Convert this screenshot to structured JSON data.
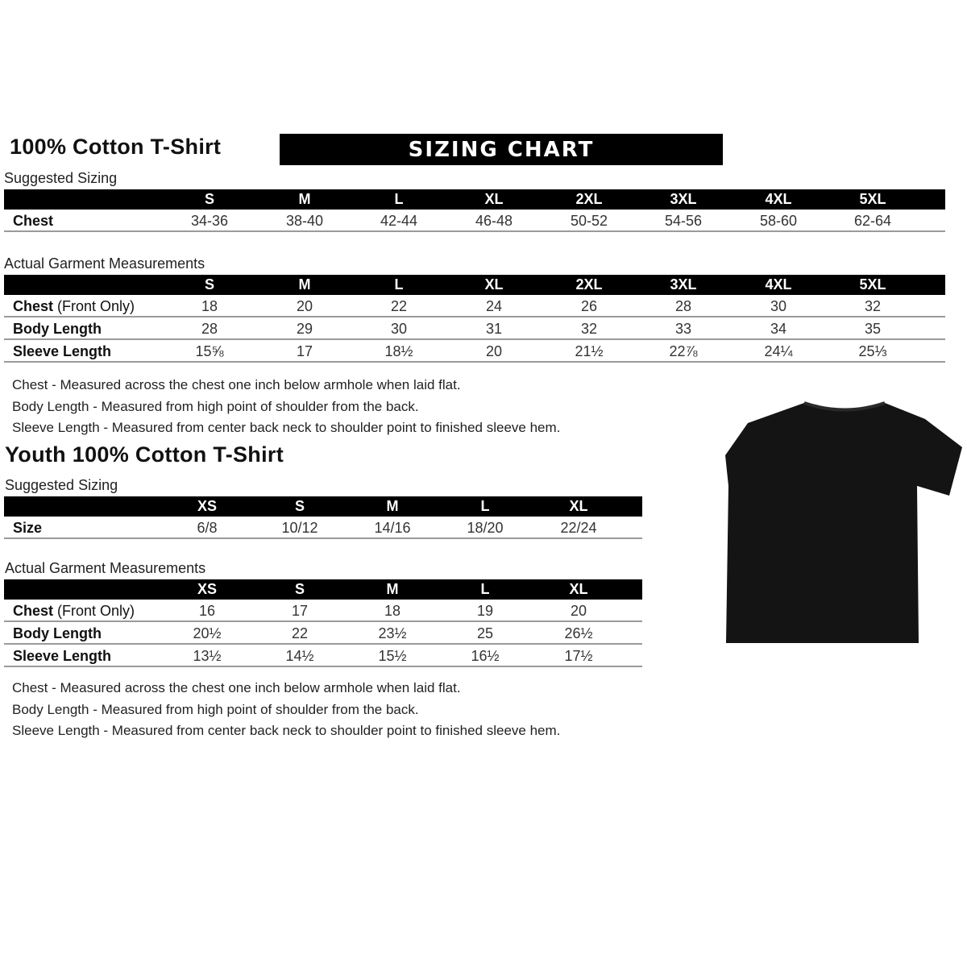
{
  "adult": {
    "title": "100% Cotton T-Shirt",
    "banner": "SIZING CHART",
    "suggested_label": "Suggested Sizing",
    "suggested": {
      "sizes": [
        "S",
        "M",
        "L",
        "XL",
        "2XL",
        "3XL",
        "4XL",
        "5XL"
      ],
      "rows": [
        {
          "label": "Chest",
          "values": [
            "34-36",
            "38-40",
            "42-44",
            "46-48",
            "50-52",
            "54-56",
            "58-60",
            "62-64"
          ]
        }
      ]
    },
    "actual_label": "Actual Garment Measurements",
    "actual": {
      "sizes": [
        "S",
        "M",
        "L",
        "XL",
        "2XL",
        "3XL",
        "4XL",
        "5XL"
      ],
      "rows": [
        {
          "label": "Chest",
          "label_suffix": " (Front Only)",
          "values": [
            "18",
            "20",
            "22",
            "24",
            "26",
            "28",
            "30",
            "32"
          ]
        },
        {
          "label": "Body Length",
          "values": [
            "28",
            "29",
            "30",
            "31",
            "32",
            "33",
            "34",
            "35"
          ]
        },
        {
          "label": "Sleeve Length",
          "values": [
            "15⅝",
            "17",
            "18½",
            "20",
            "21½",
            "22⅞",
            "24¼",
            "25⅓"
          ]
        }
      ]
    },
    "notes": [
      "Chest - Measured across the chest one inch below armhole when laid flat.",
      "Body Length - Measured from high point of shoulder from the back.",
      "Sleeve Length - Measured from center back neck to shoulder point to finished sleeve hem."
    ]
  },
  "youth": {
    "title": "Youth 100% Cotton T-Shirt",
    "suggested_label": "Suggested Sizing",
    "suggested": {
      "sizes": [
        "XS",
        "S",
        "M",
        "L",
        "XL"
      ],
      "rows": [
        {
          "label": "Size",
          "values": [
            "6/8",
            "10/12",
            "14/16",
            "18/20",
            "22/24"
          ]
        }
      ]
    },
    "actual_label": "Actual Garment Measurements",
    "actual": {
      "sizes": [
        "XS",
        "S",
        "M",
        "L",
        "XL"
      ],
      "rows": [
        {
          "label": "Chest",
          "label_suffix": " (Front Only)",
          "values": [
            "16",
            "17",
            "18",
            "19",
            "20"
          ]
        },
        {
          "label": "Body Length",
          "values": [
            "20½",
            "22",
            "23½",
            "25",
            "26½"
          ]
        },
        {
          "label": "Sleeve Length",
          "values": [
            "13½",
            "14½",
            "15½",
            "16½",
            "17½"
          ]
        }
      ]
    },
    "notes": [
      "Chest - Measured across the chest one inch below armhole when laid flat.",
      "Body Length - Measured from high point of shoulder from the back.",
      "Sleeve Length - Measured from center back neck to shoulder point to finished sleeve hem."
    ]
  },
  "image": {
    "icon": "t-shirt-icon",
    "color": "#111111"
  }
}
